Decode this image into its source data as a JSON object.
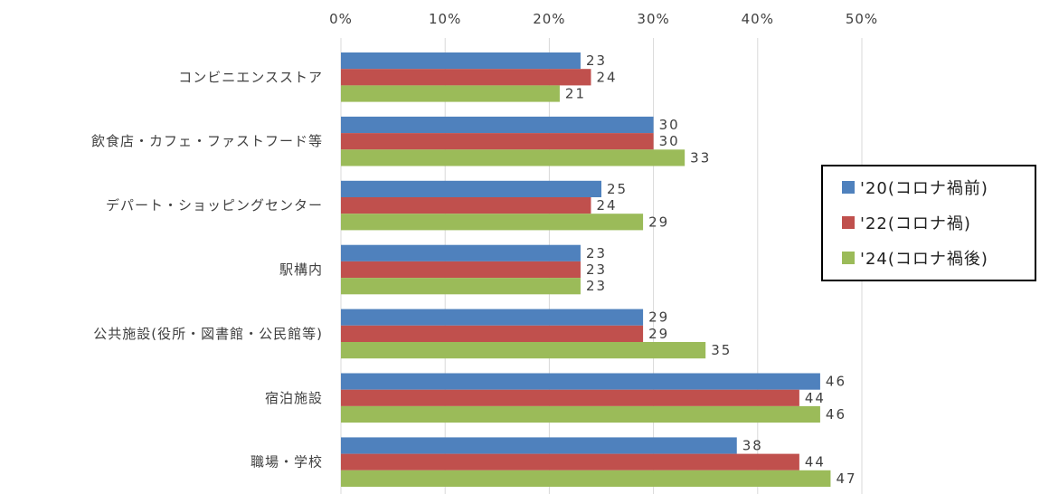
{
  "chart_data": {
    "type": "bar",
    "orientation": "horizontal",
    "categories": [
      "コンビニエンスストア",
      "飲食店・カフェ・ファストフード等",
      "デパート・ショッピングセンター",
      "駅構内",
      "公共施設(役所・図書館・公民館等)",
      "宿泊施設",
      "職場・学校"
    ],
    "series": [
      {
        "name": "'20(コロナ禍前)",
        "color": "#4f81bd",
        "values": [
          23,
          30,
          25,
          23,
          29,
          46,
          38
        ]
      },
      {
        "name": "'22(コロナ禍)",
        "color": "#c0504d",
        "values": [
          24,
          30,
          24,
          23,
          29,
          44,
          44
        ]
      },
      {
        "name": "'24(コロナ禍後)",
        "color": "#9bbb59",
        "values": [
          21,
          33,
          29,
          23,
          35,
          46,
          47
        ]
      }
    ],
    "xlim": [
      0,
      50
    ],
    "xticks": [
      0,
      10,
      20,
      30,
      40,
      50
    ],
    "xtick_labels": [
      "0%",
      "10%",
      "20%",
      "30%",
      "40%",
      "50%"
    ],
    "x_axis_position": "top",
    "grid": true,
    "legend_position": "right"
  }
}
